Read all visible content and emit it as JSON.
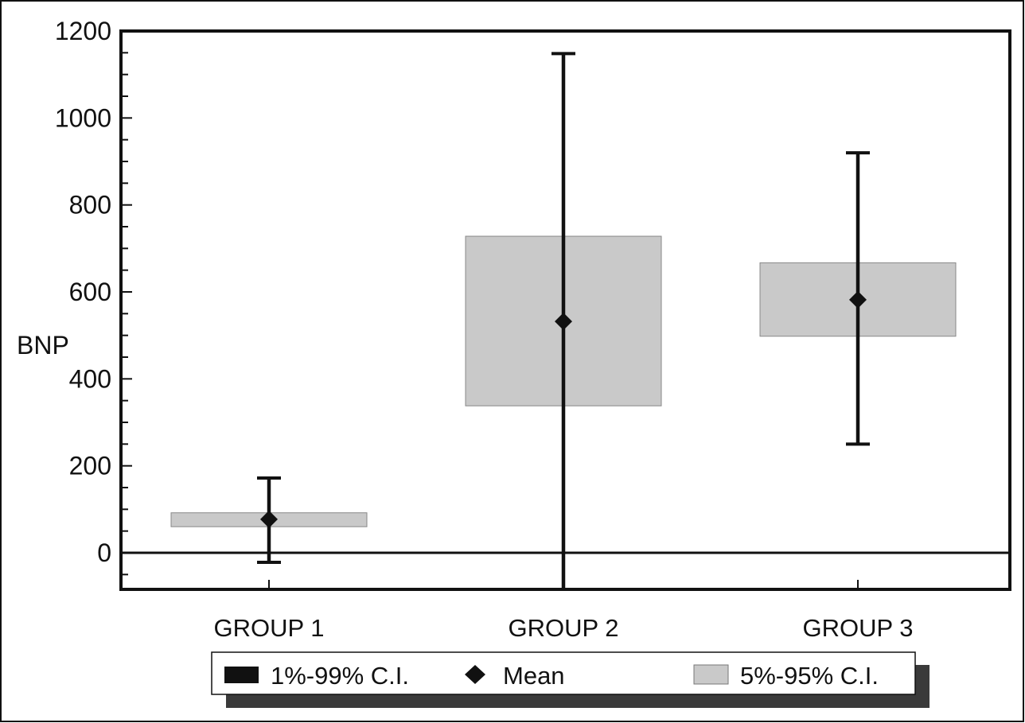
{
  "chart_data": {
    "type": "box",
    "ylabel": "BNP",
    "xlabel": "",
    "ylim": [
      -85,
      1200
    ],
    "yticks": [
      0,
      200,
      400,
      600,
      800,
      1000,
      1200
    ],
    "categories": [
      "GROUP 1",
      "GROUP 2",
      "GROUP 3"
    ],
    "groups": [
      {
        "name": "GROUP 1",
        "ci1_99": [
          -22,
          172
        ],
        "ci5_95": [
          60,
          92
        ],
        "mean": 77
      },
      {
        "name": "GROUP 2",
        "ci1_99": [
          -85,
          1148
        ],
        "ci5_95": [
          338,
          728
        ],
        "mean": 532
      },
      {
        "name": "GROUP 3",
        "ci1_99": [
          250,
          920
        ],
        "ci5_95": [
          498,
          667
        ],
        "mean": 582
      }
    ],
    "legend": {
      "placement": "bottom",
      "items": [
        {
          "label": "1%-99% C.I.",
          "kind": "whisker"
        },
        {
          "label": "Mean",
          "kind": "diamond"
        },
        {
          "label": "5%-95% C.I.",
          "kind": "box"
        }
      ]
    },
    "colors": {
      "box_fill": "#c9c9c9",
      "whisker": "#111111",
      "mean": "#111111",
      "legend_shadow": "#3a3a3a"
    }
  }
}
